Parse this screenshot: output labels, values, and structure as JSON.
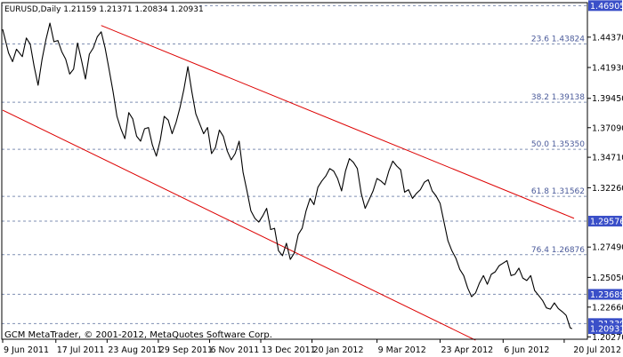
{
  "window": {
    "title": "EURUSD,Daily",
    "ohlc": "1.21159 1.21371 1.20834 1.20931",
    "copyright": "GCM MetaTrader, © 2001-2012, MetaQuotes Software Corp."
  },
  "colors": {
    "price_line": "#000000",
    "channel": "#dd0000",
    "grid": "#7f8fb3",
    "fib_label": "#4a5a9a",
    "highlight_box": "#3a4fc8",
    "frame": "#000000"
  },
  "chart_data": {
    "type": "line",
    "symbol": "EURUSD",
    "timeframe": "Daily",
    "ylim": [
      1.2022,
      1.47
    ],
    "y_ticks": [
      "1.44370",
      "1.41930",
      "1.39450",
      "1.37090",
      "1.34710",
      "1.32260",
      "1.27490",
      "1.25050",
      "1.22660",
      "1.20270"
    ],
    "x_ticks": [
      "9 Jun 2011",
      "17 Jul 2011",
      "23 Aug 2011",
      "29 Sep 2011",
      "6 Nov 2011",
      "13 Dec 2011",
      "20 Jan 2012",
      "9 Mar 2012",
      "23 Apr 2012",
      "6 Jun 2012",
      "20 Jul 2012"
    ],
    "x_tick_index": [
      0,
      27,
      53,
      79,
      105,
      131,
      157,
      190,
      222,
      254,
      285
    ],
    "x_range": [
      0,
      290
    ],
    "fib_levels": [
      {
        "label": "23.6",
        "value": 1.43824,
        "price": "1.43824"
      },
      {
        "label": "38.2",
        "value": 1.39138,
        "price": "1.39138"
      },
      {
        "label": "50.0",
        "value": 1.3535,
        "price": "1.35350"
      },
      {
        "label": "61.8",
        "value": 1.31562,
        "price": "1.31562"
      },
      {
        "label": "76.4",
        "value": 1.26876,
        "price": "1.26876"
      }
    ],
    "boxed_levels": [
      {
        "value": 1.46905,
        "price": "1.46905",
        "dashed": true
      },
      {
        "value": 1.29576,
        "price": "1.29576",
        "dashed": true
      },
      {
        "value": 1.23689,
        "price": "1.23689",
        "dashed": true
      },
      {
        "value": 1.21339,
        "price": "1.21339",
        "dashed": true
      },
      {
        "value": 1.20931,
        "price": "1.20931",
        "dashed": false
      }
    ],
    "channel": [
      {
        "x1": 50,
        "y1": 1.4531,
        "x2": 290,
        "y2": 1.298
      },
      {
        "x1": 0,
        "y1": 1.385,
        "x2": 240,
        "y2": 1.2
      }
    ],
    "series": [
      {
        "x": [
          0,
          3,
          5,
          7,
          10,
          12,
          14,
          16,
          18,
          20,
          22,
          24,
          26,
          28,
          30,
          32,
          34,
          36,
          38,
          40,
          42,
          44,
          46,
          48,
          50,
          52,
          54,
          56,
          58,
          60,
          62,
          64,
          66,
          68,
          70,
          72,
          74,
          76,
          78,
          80,
          82,
          84,
          86,
          88,
          90,
          92,
          94,
          96,
          98,
          100,
          102,
          104,
          106,
          108,
          110,
          112,
          114,
          116,
          118,
          120,
          122,
          124,
          126,
          128,
          130,
          132,
          134,
          136,
          138,
          140,
          142,
          144,
          146,
          148,
          150,
          152,
          154,
          156,
          158,
          160,
          162,
          164,
          166,
          168,
          170,
          172,
          174,
          176,
          178,
          180,
          182,
          184,
          186,
          188,
          190,
          192,
          194,
          196,
          198,
          200,
          202,
          204,
          206,
          208,
          210,
          212,
          214,
          216,
          218,
          220,
          222,
          224,
          226,
          228,
          230,
          232,
          234,
          236,
          238,
          240,
          242,
          244,
          246,
          248,
          250,
          252,
          254,
          256,
          258,
          260,
          262,
          264,
          266,
          268,
          270,
          272,
          274,
          276,
          278,
          280,
          282,
          284,
          286,
          288,
          289
        ],
        "y": [
          1.45,
          1.431,
          1.424,
          1.434,
          1.428,
          1.443,
          1.438,
          1.42,
          1.405,
          1.426,
          1.442,
          1.455,
          1.44,
          1.441,
          1.432,
          1.426,
          1.414,
          1.418,
          1.439,
          1.425,
          1.41,
          1.43,
          1.435,
          1.444,
          1.448,
          1.435,
          1.418,
          1.4,
          1.38,
          1.37,
          1.362,
          1.383,
          1.378,
          1.364,
          1.36,
          1.37,
          1.371,
          1.357,
          1.348,
          1.361,
          1.38,
          1.377,
          1.366,
          1.375,
          1.387,
          1.402,
          1.42,
          1.4,
          1.382,
          1.374,
          1.366,
          1.371,
          1.35,
          1.355,
          1.369,
          1.364,
          1.352,
          1.345,
          1.35,
          1.36,
          1.335,
          1.32,
          1.304,
          1.298,
          1.295,
          1.3,
          1.306,
          1.289,
          1.29,
          1.272,
          1.268,
          1.278,
          1.265,
          1.27,
          1.285,
          1.29,
          1.304,
          1.314,
          1.309,
          1.323,
          1.328,
          1.332,
          1.338,
          1.336,
          1.33,
          1.32,
          1.336,
          1.346,
          1.343,
          1.338,
          1.318,
          1.306,
          1.313,
          1.32,
          1.33,
          1.328,
          1.325,
          1.336,
          1.344,
          1.34,
          1.337,
          1.319,
          1.321,
          1.314,
          1.318,
          1.321,
          1.327,
          1.329,
          1.32,
          1.316,
          1.31,
          1.295,
          1.28,
          1.272,
          1.266,
          1.257,
          1.252,
          1.242,
          1.235,
          1.238,
          1.246,
          1.252,
          1.245,
          1.253,
          1.255,
          1.26,
          1.262,
          1.264,
          1.252,
          1.253,
          1.258,
          1.25,
          1.248,
          1.252,
          1.24,
          1.236,
          1.232,
          1.226,
          1.225,
          1.23,
          1.2255,
          1.223,
          1.22,
          1.21,
          1.2093
        ]
      }
    ]
  }
}
